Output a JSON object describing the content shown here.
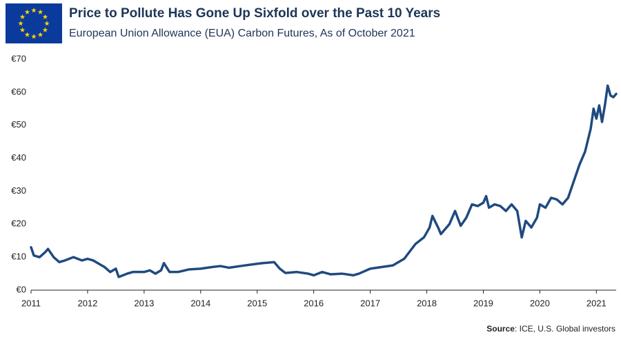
{
  "chart_data": {
    "type": "line",
    "title": "Price to Pollute Has Gone Up Sixfold over the Past 10 Years",
    "subtitle": "European Union Allowance (EUA) Carbon Futures, As of October 2021",
    "source_label": "Source",
    "source_text": ": ICE, U.S. Global investors",
    "xlim": [
      2011,
      2021.35
    ],
    "xticks": [
      2011,
      2012,
      2013,
      2014,
      2015,
      2016,
      2017,
      2018,
      2019,
      2020,
      2021
    ],
    "ylim": [
      0,
      70
    ],
    "yticks": [
      {
        "value": 0,
        "label": "€0"
      },
      {
        "value": 10,
        "label": "€10"
      },
      {
        "value": 20,
        "label": "€20"
      },
      {
        "value": 30,
        "label": "€30"
      },
      {
        "value": 40,
        "label": "€40"
      },
      {
        "value": 50,
        "label": "€50"
      },
      {
        "value": 60,
        "label": "€60"
      },
      {
        "value": 70,
        "label": "€70"
      }
    ],
    "grid": false,
    "series": [
      {
        "name": "EUA Carbon Futures",
        "color": "#1f4a80",
        "x": [
          2011.0,
          2011.05,
          2011.15,
          2011.25,
          2011.3,
          2011.4,
          2011.5,
          2011.6,
          2011.75,
          2011.9,
          2012.0,
          2012.1,
          2012.2,
          2012.3,
          2012.4,
          2012.5,
          2012.55,
          2012.7,
          2012.8,
          2013.0,
          2013.1,
          2013.2,
          2013.3,
          2013.35,
          2013.45,
          2013.6,
          2013.8,
          2014.0,
          2014.2,
          2014.35,
          2014.5,
          2014.7,
          2015.0,
          2015.1,
          2015.3,
          2015.4,
          2015.5,
          2015.7,
          2015.9,
          2016.0,
          2016.15,
          2016.3,
          2016.5,
          2016.7,
          2016.8,
          2017.0,
          2017.2,
          2017.4,
          2017.6,
          2017.8,
          2017.95,
          2018.05,
          2018.1,
          2018.2,
          2018.25,
          2018.4,
          2018.5,
          2018.6,
          2018.7,
          2018.8,
          2018.9,
          2019.0,
          2019.05,
          2019.1,
          2019.2,
          2019.3,
          2019.4,
          2019.5,
          2019.6,
          2019.68,
          2019.75,
          2019.85,
          2019.95,
          2020.0,
          2020.1,
          2020.2,
          2020.3,
          2020.4,
          2020.5,
          2020.6,
          2020.7,
          2020.8,
          2020.9,
          2020.95,
          2021.0,
          2021.05,
          2021.1,
          2021.15,
          2021.2,
          2021.25,
          2021.3,
          2021.35
        ],
        "values": [
          13,
          10.5,
          10,
          11.5,
          12.5,
          10,
          8.5,
          9,
          10,
          9,
          9.5,
          9,
          8,
          7,
          5.5,
          6.5,
          4,
          5,
          5.5,
          5.5,
          6,
          5,
          6,
          8.2,
          5.5,
          5.5,
          6.3,
          6.5,
          7,
          7.3,
          6.8,
          7.3,
          8,
          8.2,
          8.5,
          6.5,
          5.2,
          5.5,
          5,
          4.5,
          5.5,
          4.8,
          5,
          4.5,
          5,
          6.5,
          7,
          7.5,
          9.5,
          14,
          16,
          19,
          22.5,
          19,
          17,
          20,
          24,
          19.5,
          22,
          26,
          25.5,
          26.5,
          28.5,
          25,
          26,
          25.5,
          24,
          26,
          24,
          16,
          21,
          19,
          22,
          26,
          25,
          28,
          27.5,
          26,
          28,
          33,
          38,
          42,
          49,
          55,
          52,
          56,
          51,
          56,
          62,
          59,
          58.5,
          59.5
        ]
      }
    ]
  }
}
